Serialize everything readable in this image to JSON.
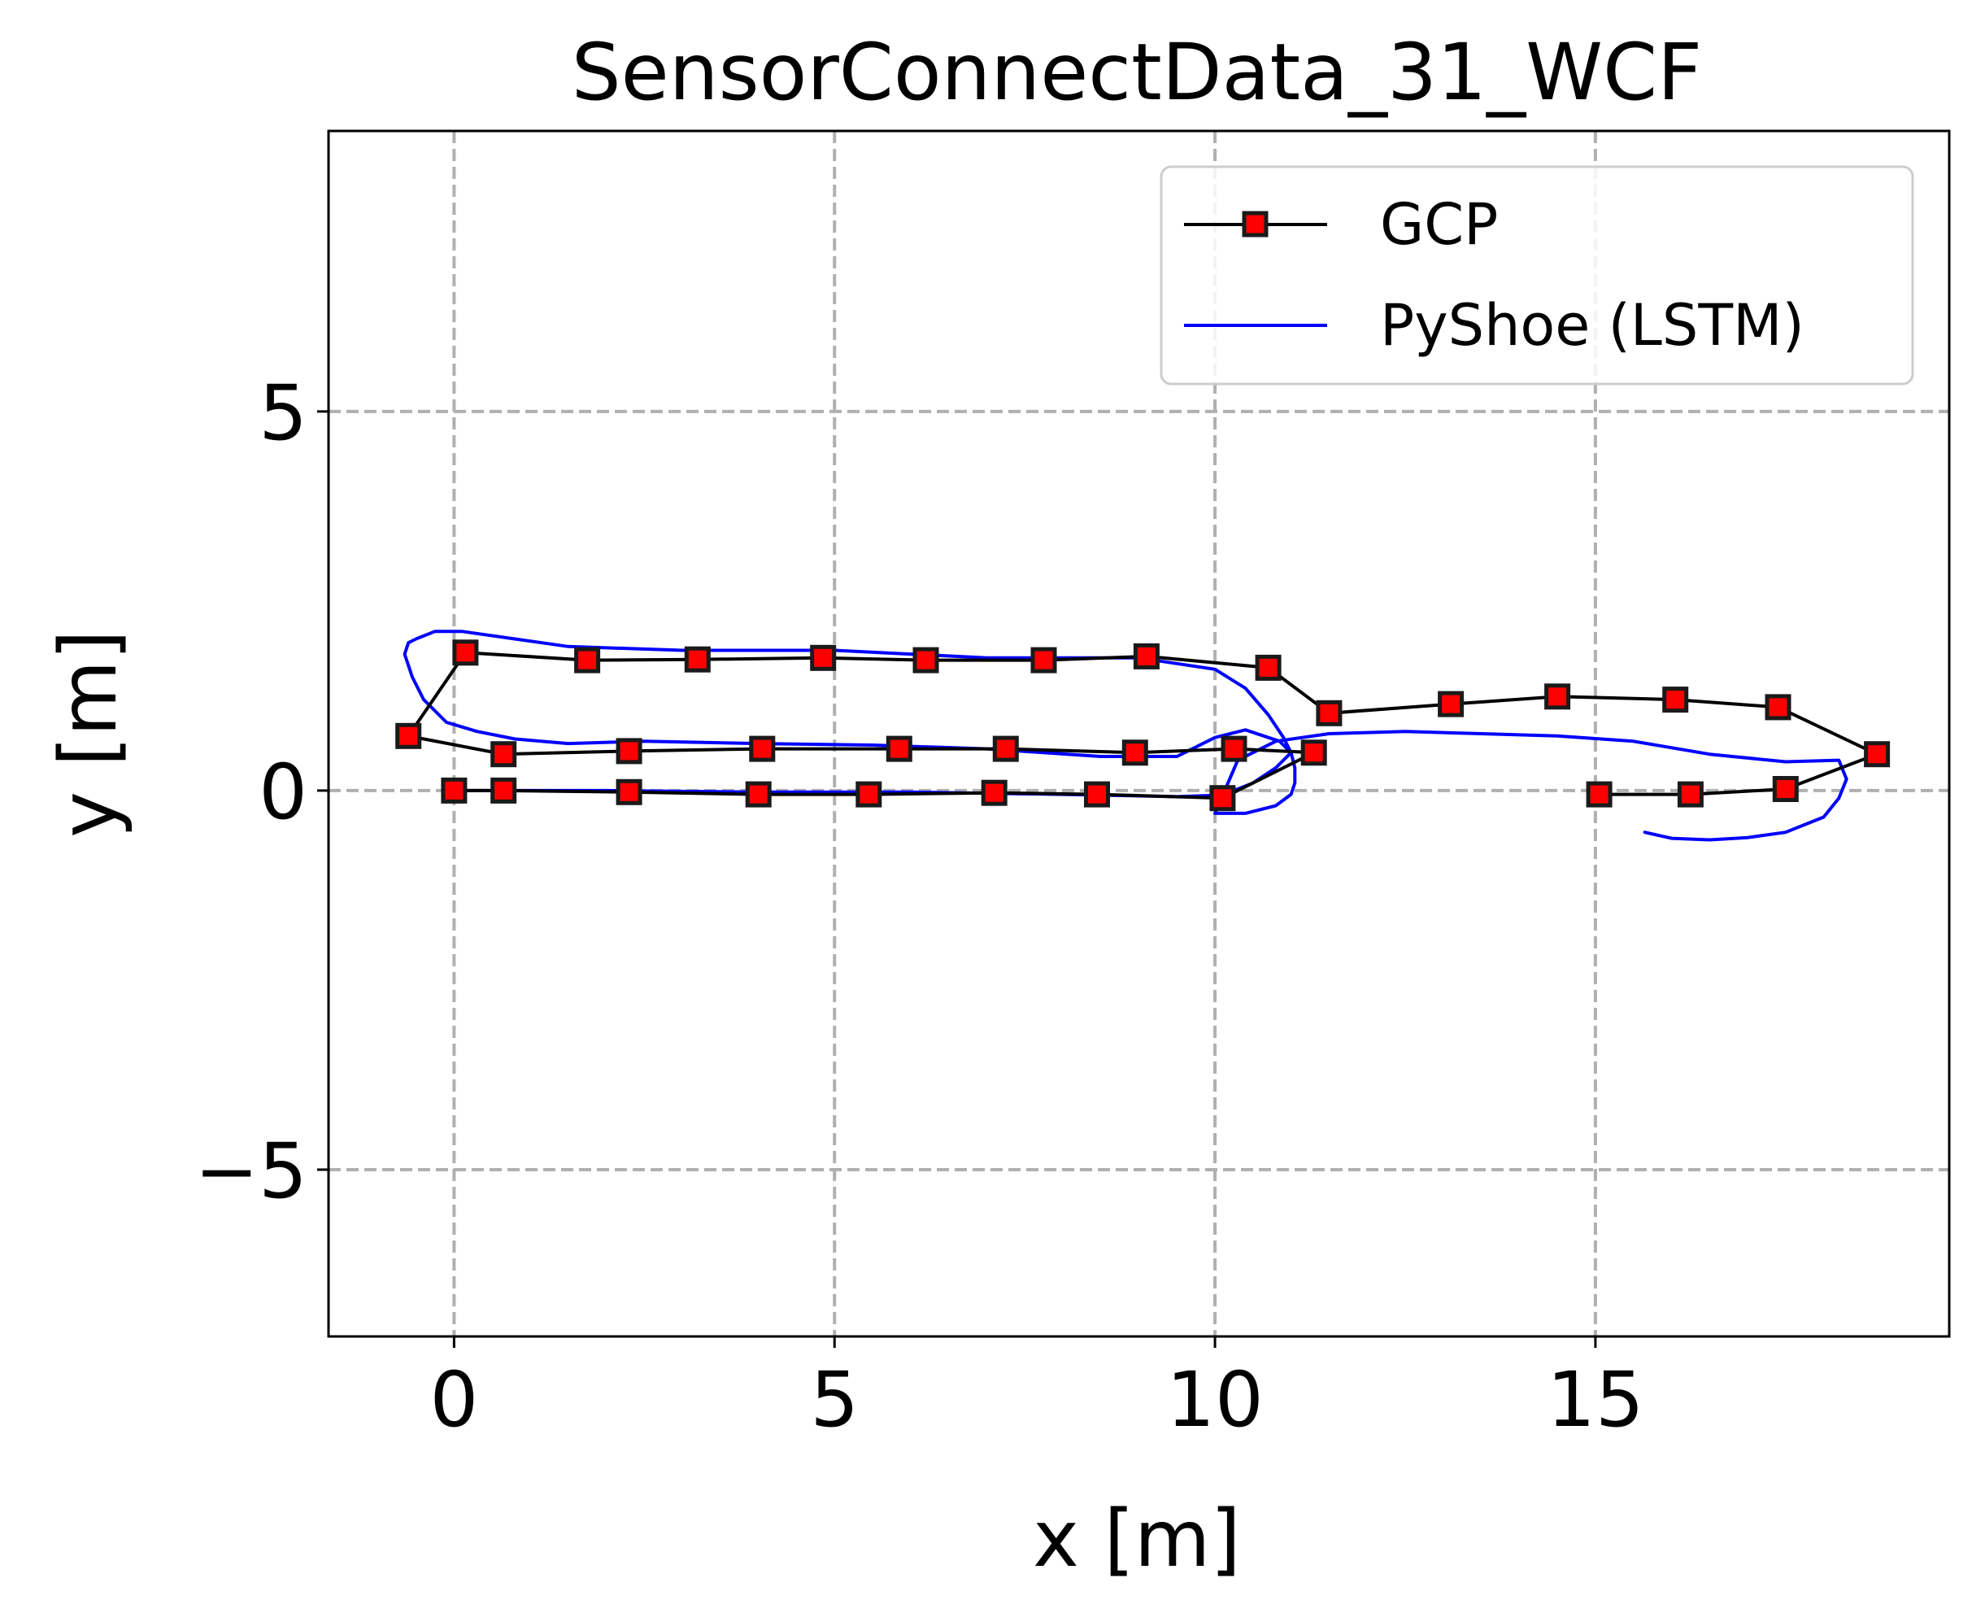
{
  "chart_data": {
    "type": "line",
    "title": "SensorConnectData_31_WCF",
    "xlabel": "x [m]",
    "ylabel": "y [m]",
    "xlim": [
      -1.65,
      19.65
    ],
    "ylim": [
      -7.2,
      8.7
    ],
    "xticks": [
      0,
      5,
      10,
      15
    ],
    "yticks": [
      -5,
      0,
      5
    ],
    "xtick_labels": [
      "0",
      "5",
      "10",
      "15"
    ],
    "ytick_labels": [
      "−5",
      "0",
      "5"
    ],
    "grid": true,
    "legend_position": "top-right",
    "series": [
      {
        "name": "GCP",
        "color": "#000000",
        "marker": "square",
        "marker_color": "#ff0000",
        "x": [
          0.0,
          0.65,
          2.3,
          4.0,
          5.45,
          7.1,
          8.45,
          10.1,
          11.3,
          10.25,
          8.95,
          7.25,
          5.85,
          4.05,
          2.3,
          0.65,
          -0.6,
          0.15,
          1.75,
          3.2,
          4.85,
          6.2,
          7.75,
          9.1,
          10.7,
          11.5,
          13.1,
          14.5,
          16.05,
          17.4,
          18.7,
          17.5,
          16.25,
          15.05
        ],
        "y": [
          0.0,
          0.0,
          -0.02,
          -0.05,
          -0.05,
          -0.03,
          -0.05,
          -0.1,
          0.5,
          0.55,
          0.5,
          0.55,
          0.55,
          0.55,
          0.52,
          0.48,
          0.72,
          1.82,
          1.72,
          1.73,
          1.75,
          1.72,
          1.72,
          1.77,
          1.62,
          1.02,
          1.14,
          1.24,
          1.2,
          1.1,
          0.48,
          0.02,
          -0.05,
          -0.05
        ]
      },
      {
        "name": "PyShoe (LSTM)",
        "color": "#0000ff",
        "x": [
          0.0,
          2.0,
          4.0,
          6.0,
          8.0,
          9.5,
          10.1,
          10.5,
          10.8,
          11.0,
          10.85,
          10.4,
          10.0,
          9.5,
          8.5,
          7.0,
          5.5,
          4.0,
          2.5,
          1.5,
          0.8,
          0.3,
          -0.1,
          -0.4,
          -0.55,
          -0.65,
          -0.6,
          -0.5,
          -0.25,
          0.1,
          0.8,
          1.5,
          3.0,
          5.0,
          7.0,
          9.0,
          10.0,
          10.4,
          10.7,
          10.9,
          11.0,
          11.05,
          11.05,
          11.0,
          10.8,
          10.4,
          10.0,
          10.3,
          10.8,
          11.5,
          12.5,
          13.5,
          14.5,
          15.5,
          16.5,
          17.5,
          18.2,
          18.3,
          18.2,
          18.0,
          17.5,
          17.0,
          16.5,
          16.0,
          15.65
        ],
        "y": [
          0.0,
          0.0,
          -0.02,
          -0.02,
          -0.05,
          -0.08,
          -0.06,
          0.1,
          0.3,
          0.5,
          0.65,
          0.8,
          0.7,
          0.45,
          0.45,
          0.55,
          0.6,
          0.62,
          0.65,
          0.62,
          0.68,
          0.78,
          0.9,
          1.2,
          1.5,
          1.8,
          1.95,
          2.0,
          2.1,
          2.1,
          2.0,
          1.9,
          1.85,
          1.85,
          1.75,
          1.75,
          1.6,
          1.35,
          1.0,
          0.7,
          0.5,
          0.3,
          0.1,
          -0.05,
          -0.2,
          -0.3,
          -0.3,
          0.4,
          0.65,
          0.75,
          0.78,
          0.75,
          0.72,
          0.65,
          0.48,
          0.38,
          0.4,
          0.15,
          -0.1,
          -0.35,
          -0.55,
          -0.62,
          -0.65,
          -0.63,
          -0.55
        ]
      }
    ]
  }
}
